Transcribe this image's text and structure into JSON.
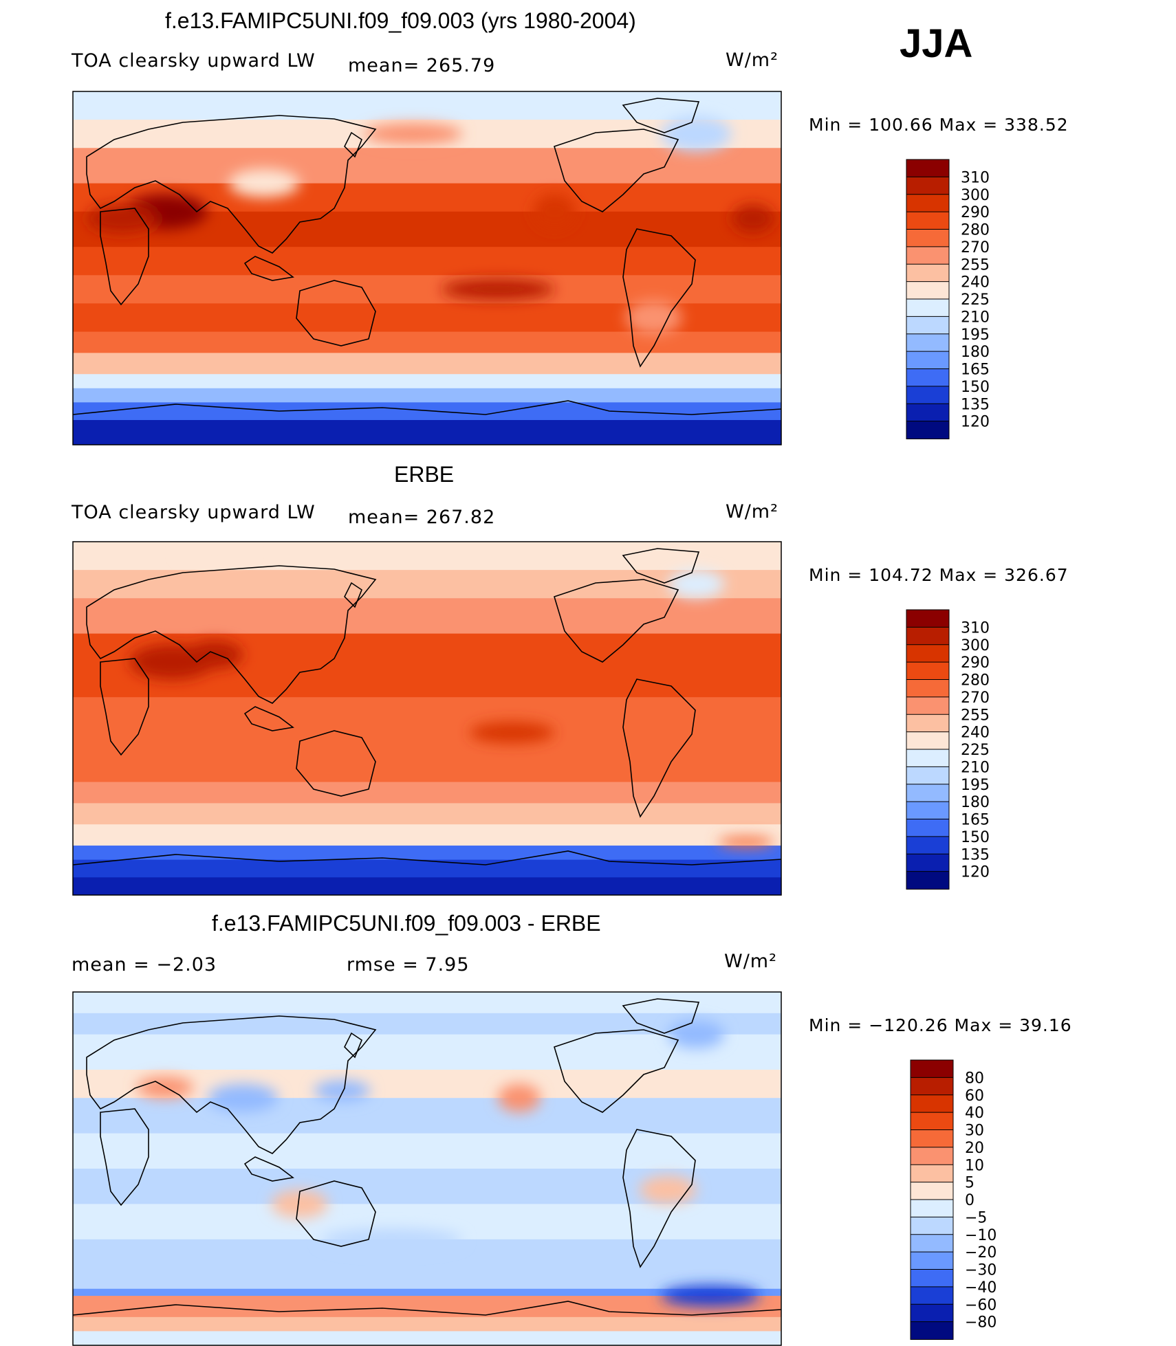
{
  "season": "JJA",
  "panels": [
    {
      "title": "f.e13.FAMIPC5UNI.f09_f09.003 (yrs 1980-2004)",
      "left_label": "TOA clearsky upward LW",
      "stat1": "mean= 265.79",
      "stat2": "",
      "units": "W/m²",
      "minmax": "Min  =  100.66  Max  =  338.52"
    },
    {
      "title": "ERBE",
      "left_label": "TOA clearsky upward LW",
      "stat1": "mean= 267.82",
      "stat2": "",
      "units": "W/m²",
      "minmax": "Min  =  104.72  Max  =  326.67"
    },
    {
      "title": "f.e13.FAMIPC5UNI.f09_f09.003 - ERBE",
      "left_label": "mean  =    −2.03",
      "stat1": "rmse  =     7.95",
      "stat2": "",
      "units": "W/m²",
      "minmax": "Min  =  −120.26  Max  =    39.16"
    }
  ],
  "chart_data": [
    {
      "type": "heatmap",
      "title": "f.e13.FAMIPC5UNI.f09_f09.003 (yrs 1980-2004)",
      "variable": "TOA clearsky upward LW",
      "units": "W/m²",
      "mean": 265.79,
      "min": 100.66,
      "max": 338.52,
      "colorbar_levels": [
        "310",
        "300",
        "290",
        "280",
        "270",
        "255",
        "240",
        "225",
        "210",
        "195",
        "180",
        "165",
        "150",
        "135",
        "120"
      ],
      "colorbar_colors": [
        "#8b0000",
        "#b81e00",
        "#d83400",
        "#ec4a12",
        "#f66a38",
        "#fa9270",
        "#fcc0a2",
        "#fde6d6",
        "#dceeff",
        "#bcd8ff",
        "#93baff",
        "#6a99ff",
        "#3e6cf5",
        "#1a3fd6",
        "#0a1fb0",
        "#000a80"
      ]
    },
    {
      "type": "heatmap",
      "title": "ERBE",
      "variable": "TOA clearsky upward LW",
      "units": "W/m²",
      "mean": 267.82,
      "min": 104.72,
      "max": 326.67,
      "colorbar_levels": [
        "310",
        "300",
        "290",
        "280",
        "270",
        "255",
        "240",
        "225",
        "210",
        "195",
        "180",
        "165",
        "150",
        "135",
        "120"
      ],
      "colorbar_colors": [
        "#8b0000",
        "#b81e00",
        "#d83400",
        "#ec4a12",
        "#f66a38",
        "#fa9270",
        "#fcc0a2",
        "#fde6d6",
        "#dceeff",
        "#bcd8ff",
        "#93baff",
        "#6a99ff",
        "#3e6cf5",
        "#1a3fd6",
        "#0a1fb0",
        "#000a80"
      ]
    },
    {
      "type": "heatmap",
      "title": "f.e13.FAMIPC5UNI.f09_f09.003 - ERBE",
      "variable": "difference",
      "units": "W/m²",
      "mean": -2.03,
      "rmse": 7.95,
      "min": -120.26,
      "max": 39.16,
      "colorbar_levels": [
        "80",
        "60",
        "40",
        "30",
        "20",
        "10",
        "5",
        "0",
        "−5",
        "−10",
        "−20",
        "−30",
        "−40",
        "−60",
        "−80"
      ],
      "colorbar_colors": [
        "#8b0000",
        "#b81e00",
        "#d83400",
        "#ec4a12",
        "#f66a38",
        "#fa9270",
        "#fcc0a2",
        "#fde6d6",
        "#dceeff",
        "#bcd8ff",
        "#93baff",
        "#6a99ff",
        "#3e6cf5",
        "#1a3fd6",
        "#0a1fb0",
        "#000a80"
      ]
    }
  ]
}
